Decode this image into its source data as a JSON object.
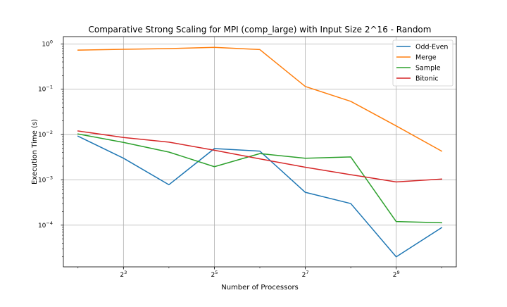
{
  "chart_data": {
    "type": "line",
    "title": "Comparative Strong Scaling for MPI (comp_large) with Input Size 2^16 - Random",
    "xlabel": "Number of Processors",
    "ylabel": "Execution Time (s)",
    "x_scale": "log2",
    "y_scale": "log10",
    "x": [
      4,
      8,
      16,
      32,
      64,
      128,
      256,
      512,
      1024
    ],
    "xlim": [
      3.2,
      1280
    ],
    "ylim": [
      1.2e-05,
      1.45
    ],
    "x_ticks": [
      {
        "value": 8,
        "base": "2",
        "exp": "3"
      },
      {
        "value": 32,
        "base": "2",
        "exp": "5"
      },
      {
        "value": 128,
        "base": "2",
        "exp": "7"
      },
      {
        "value": 512,
        "base": "2",
        "exp": "9"
      }
    ],
    "y_ticks": [
      {
        "value": 0.0001,
        "base": "10",
        "exp": "−4"
      },
      {
        "value": 0.001,
        "base": "10",
        "exp": "−3"
      },
      {
        "value": 0.01,
        "base": "10",
        "exp": "−2"
      },
      {
        "value": 0.1,
        "base": "10",
        "exp": "−1"
      },
      {
        "value": 1,
        "base": "10",
        "exp": "0"
      }
    ],
    "grid": true,
    "legend_position": "top-right",
    "series": [
      {
        "name": "Odd-Even",
        "color": "#1f77b4",
        "values": [
          0.0092,
          0.003,
          0.00078,
          0.0049,
          0.0043,
          0.00053,
          0.0003,
          2e-05,
          8.8e-05
        ]
      },
      {
        "name": "Merge",
        "color": "#ff7f0e",
        "values": [
          0.73,
          0.76,
          0.79,
          0.84,
          0.75,
          0.115,
          0.054,
          0.0155,
          0.0043
        ]
      },
      {
        "name": "Sample",
        "color": "#2ca02c",
        "values": [
          0.0103,
          0.0067,
          0.0041,
          0.00195,
          0.0038,
          0.003,
          0.0032,
          0.00012,
          0.000113
        ]
      },
      {
        "name": "Bitonic",
        "color": "#d62728",
        "values": [
          0.012,
          0.0086,
          0.0068,
          0.0045,
          0.0029,
          0.0019,
          0.0013,
          0.0009,
          0.00104
        ]
      }
    ]
  }
}
